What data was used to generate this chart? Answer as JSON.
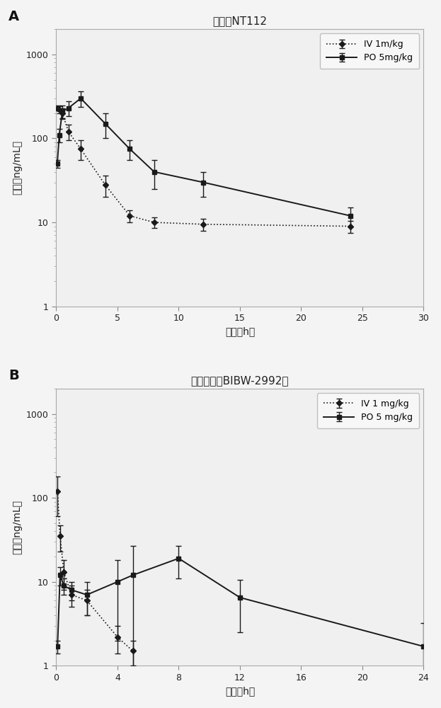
{
  "panel_A": {
    "title": "化合物NT112",
    "label": "A",
    "iv": {
      "label": "IV 1m/kg",
      "x": [
        0.083,
        0.25,
        0.5,
        1,
        2,
        4,
        6,
        8,
        12,
        24
      ],
      "y": [
        230,
        220,
        200,
        120,
        75,
        28,
        12,
        10,
        9.5,
        9
      ],
      "yerr": [
        15,
        20,
        30,
        25,
        20,
        8,
        2,
        1.5,
        1.5,
        1.5
      ],
      "marker": "D",
      "linestyle": ":"
    },
    "po": {
      "label": "PO 5mg/kg",
      "x": [
        0.083,
        0.25,
        0.5,
        1,
        2,
        4,
        6,
        8,
        12,
        24
      ],
      "y": [
        50,
        110,
        210,
        230,
        300,
        150,
        75,
        40,
        30,
        12
      ],
      "yerr": [
        5,
        20,
        35,
        45,
        65,
        50,
        20,
        15,
        10,
        3
      ],
      "marker": "s",
      "linestyle": "-"
    },
    "xlim": [
      0,
      30
    ],
    "ylim": [
      1,
      2000
    ],
    "xlabel": "时间（h）",
    "ylabel": "浓度（ng/mL）",
    "xticks": [
      0,
      5,
      10,
      15,
      20,
      25,
      30
    ],
    "yticks": [
      1,
      10,
      100,
      1000
    ]
  },
  "panel_B": {
    "title": "阿法替尼（BIBW-2992）",
    "label": "B",
    "iv": {
      "label": "IV 1 mg/kg",
      "x": [
        0.083,
        0.25,
        0.5,
        1,
        2,
        4,
        5
      ],
      "y": [
        120,
        35,
        13,
        7,
        6,
        2.2,
        1.5
      ],
      "yerr": [
        60,
        12,
        5,
        2,
        2,
        0.8,
        0.5
      ],
      "marker": "D",
      "linestyle": ":"
    },
    "po": {
      "label": "PO 5 mg/kg",
      "x": [
        0.083,
        0.25,
        0.5,
        1,
        2,
        4,
        5,
        8,
        12,
        24
      ],
      "y": [
        1.7,
        12,
        9,
        8,
        7,
        10,
        12,
        19,
        6.5,
        1.7
      ],
      "yerr": [
        0.3,
        3,
        2,
        2,
        3,
        8,
        15,
        8,
        4,
        1.5
      ],
      "marker": "s",
      "linestyle": "-"
    },
    "xlim": [
      0,
      24
    ],
    "ylim": [
      1,
      2000
    ],
    "xlabel": "时间（h）",
    "ylabel": "浓度（ng/mL）",
    "xticks": [
      0,
      4,
      8,
      12,
      16,
      20,
      24
    ],
    "yticks": [
      1,
      10,
      100,
      1000
    ]
  },
  "line_color": "#1a1a1a",
  "fig_bg": "#f4f4f4",
  "plot_bg": "#f0f0f0"
}
